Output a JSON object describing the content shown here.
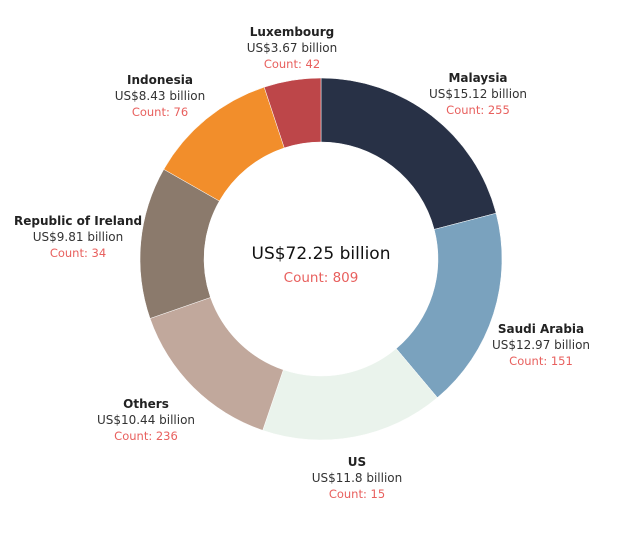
{
  "chart_data": {
    "type": "pie",
    "total_label": "US$72.25 billion",
    "total_count_label": "Count: 809",
    "slices": [
      {
        "name": "Malaysia",
        "value": 15.12,
        "value_label": "US$15.12 billion",
        "count_label": "Count: 255",
        "color": "#283146"
      },
      {
        "name": "Saudi Arabia",
        "value": 12.97,
        "value_label": "US$12.97 billion",
        "count_label": "Count: 151",
        "color": "#7aa2be"
      },
      {
        "name": "US",
        "value": 11.8,
        "value_label": "US$11.8 billion",
        "count_label": "Count: 15",
        "color": "#eaf3ec"
      },
      {
        "name": "Others",
        "value": 10.44,
        "value_label": "US$10.44 billion",
        "count_label": "Count: 236",
        "color": "#c1a89c"
      },
      {
        "name": "Republic of Ireland",
        "value": 9.81,
        "value_label": "US$9.81 billion",
        "count_label": "Count: 34",
        "color": "#8b7a6c"
      },
      {
        "name": "Indonesia",
        "value": 8.43,
        "value_label": "US$8.43 billion",
        "count_label": "Count: 76",
        "color": "#f28e2b"
      },
      {
        "name": "Luxembourg",
        "value": 3.67,
        "value_label": "US$3.67 billion",
        "count_label": "Count: 42",
        "color": "#bd4649"
      }
    ]
  }
}
